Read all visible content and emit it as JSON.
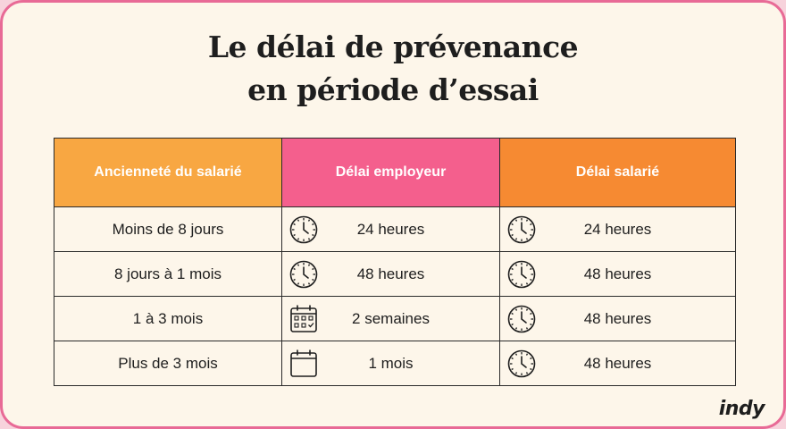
{
  "title_line1": "Le délai de prévenance",
  "title_line2": "en période d’essai",
  "table": {
    "headers": [
      "Ancienneté du salarié",
      "Délai employeur",
      "Délai salarié"
    ],
    "header_colors": [
      "#f8a742",
      "#f45f8d",
      "#f68a32"
    ],
    "rows": [
      {
        "anciennete": "Moins de 8 jours",
        "employeur": "24 heures",
        "employeur_icon": "clock-icon",
        "salarie": "24 heures",
        "salarie_icon": "clock-icon"
      },
      {
        "anciennete": "8 jours à 1 mois",
        "employeur": "48 heures",
        "employeur_icon": "clock-icon",
        "salarie": "48 heures",
        "salarie_icon": "clock-icon"
      },
      {
        "anciennete": "1 à 3 mois",
        "employeur": "2 semaines",
        "employeur_icon": "calendar-grid-icon",
        "salarie": "48 heures",
        "salarie_icon": "clock-icon"
      },
      {
        "anciennete": "Plus de 3 mois",
        "employeur": "1 mois",
        "employeur_icon": "calendar-icon",
        "salarie": "48 heures",
        "salarie_icon": "clock-icon"
      }
    ]
  },
  "logo": "indy"
}
